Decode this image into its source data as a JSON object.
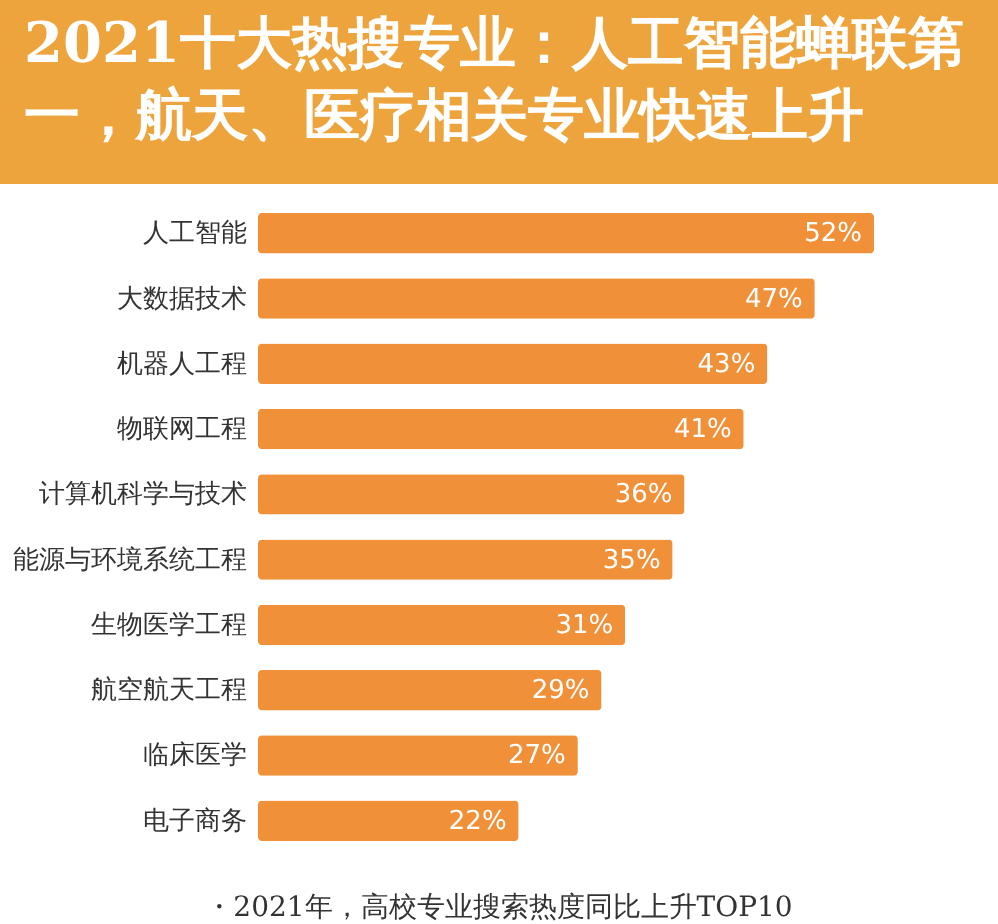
{
  "chart_data": {
    "type": "bar",
    "orientation": "horizontal",
    "title": "2021十大热搜专业：人工智能蝉联第一，航天、医疗相关专业快速上升",
    "categories": [
      "人工智能",
      "大数据技术",
      "机器人工程",
      "物联网工程",
      "计算机科学与技术",
      "能源与环境系统工程",
      "生物医学工程",
      "航空航天工程",
      "临床医学",
      "电子商务"
    ],
    "values": [
      52,
      47,
      43,
      41,
      36,
      35,
      31,
      29,
      27,
      22
    ],
    "value_labels": [
      "52%",
      "47%",
      "43%",
      "41%",
      "36%",
      "35%",
      "31%",
      "29%",
      "27%",
      "22%"
    ],
    "color": "#f0913a",
    "annotations": [
      "・2021年，高校专业搜索热度同比上升TOP10"
    ]
  }
}
